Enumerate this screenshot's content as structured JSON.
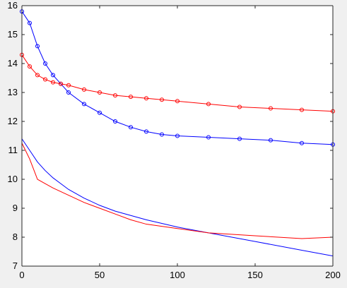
{
  "chart_data": {
    "type": "line",
    "title": "",
    "xlabel": "",
    "ylabel": "",
    "xlim": [
      0,
      200
    ],
    "ylim": [
      7,
      16
    ],
    "xticks": [
      0,
      50,
      100,
      150,
      200
    ],
    "yticks": [
      7,
      8,
      9,
      10,
      11,
      12,
      13,
      14,
      15,
      16
    ],
    "xtick_labels": [
      "0",
      "50",
      "100",
      "150",
      "200"
    ],
    "ytick_labels": [
      "7",
      "8",
      "9",
      "10",
      "11",
      "12",
      "13",
      "14",
      "15",
      "16"
    ],
    "grid": false,
    "legend": "none",
    "background_color": "#f0f0f0",
    "plot_area_color": "#ffffff",
    "series": [
      {
        "style": "line-markers",
        "marker": "circle",
        "color": "#0000ff",
        "x": [
          0,
          5,
          10,
          15,
          20,
          25,
          30,
          40,
          50,
          60,
          70,
          80,
          90,
          100,
          120,
          140,
          160,
          180,
          200
        ],
        "y": [
          15.8,
          15.4,
          14.6,
          14.0,
          13.6,
          13.3,
          13.0,
          12.6,
          12.3,
          12.0,
          11.8,
          11.65,
          11.55,
          11.5,
          11.45,
          11.4,
          11.35,
          11.25,
          11.2
        ]
      },
      {
        "style": "line-markers",
        "marker": "circle",
        "color": "#ff0000",
        "x": [
          0,
          5,
          10,
          15,
          20,
          25,
          30,
          40,
          50,
          60,
          70,
          80,
          90,
          100,
          120,
          140,
          160,
          180,
          200
        ],
        "y": [
          14.3,
          13.9,
          13.6,
          13.45,
          13.35,
          13.3,
          13.25,
          13.1,
          13.0,
          12.9,
          12.85,
          12.8,
          12.75,
          12.7,
          12.6,
          12.5,
          12.45,
          12.4,
          12.35
        ]
      },
      {
        "style": "line",
        "color": "#0000ff",
        "x": [
          0,
          5,
          10,
          15,
          20,
          30,
          40,
          50,
          60,
          70,
          80,
          100,
          120,
          150,
          180,
          200
        ],
        "y": [
          11.4,
          11.0,
          10.6,
          10.3,
          10.05,
          9.65,
          9.35,
          9.1,
          8.9,
          8.75,
          8.6,
          8.35,
          8.15,
          7.85,
          7.55,
          7.35
        ]
      },
      {
        "style": "line",
        "color": "#ff0000",
        "x": [
          0,
          5,
          10,
          15,
          20,
          30,
          40,
          50,
          60,
          70,
          80,
          100,
          120,
          150,
          180,
          200
        ],
        "y": [
          11.25,
          10.7,
          10.0,
          9.85,
          9.7,
          9.45,
          9.2,
          9.0,
          8.8,
          8.6,
          8.45,
          8.3,
          8.15,
          8.05,
          7.95,
          8.0
        ]
      }
    ]
  }
}
